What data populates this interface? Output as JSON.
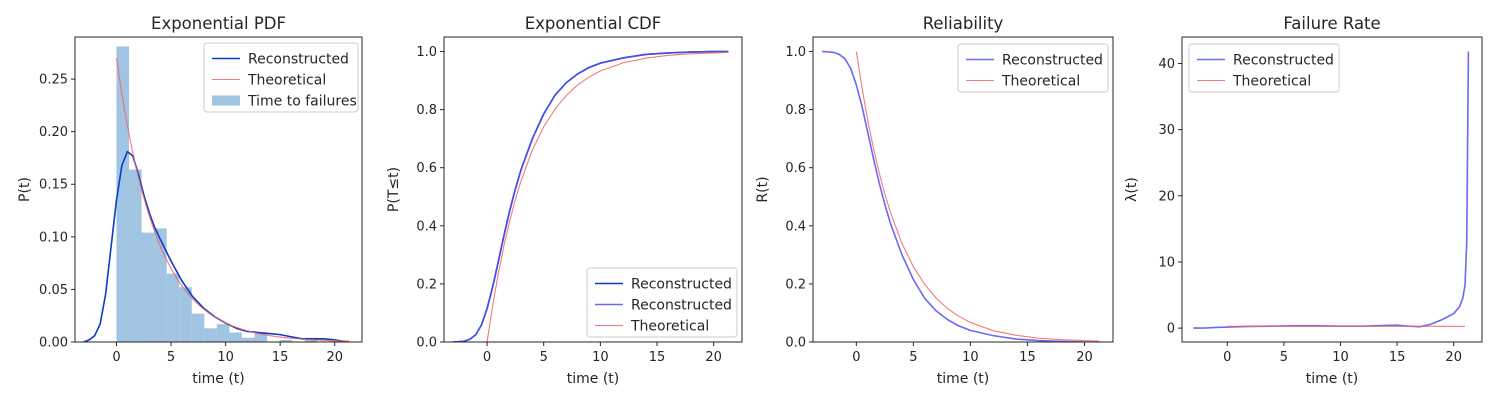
{
  "colors": {
    "reconstructed_kde": "#0a3cc8",
    "reconstructed": "#5050f0",
    "theoretical": "#f06464",
    "histogram": "#8fbadd",
    "axis": "#262626"
  },
  "chart_data": [
    {
      "type": "line",
      "title": "Exponential PDF",
      "xlabel": "time (t)",
      "ylabel": "P(t)",
      "xlim": [
        -3.8,
        22.5
      ],
      "ylim": [
        0,
        0.29
      ],
      "xticks": [
        0,
        5,
        10,
        15,
        20
      ],
      "yticks": [
        0.0,
        0.05,
        0.1,
        0.15,
        0.2,
        0.25
      ],
      "ytick_labels": [
        "0.00",
        "0.05",
        "0.10",
        "0.15",
        "0.20",
        "0.25"
      ],
      "legend_position": "top-right",
      "legend": [
        "Reconstructed",
        "Theoretical",
        "Time to failures"
      ],
      "histogram": {
        "name": "Time to failures",
        "bin_edges": [
          0,
          1.15,
          2.3,
          3.45,
          4.6,
          5.75,
          6.9,
          8.05,
          9.2,
          10.35,
          11.5,
          12.65,
          13.8,
          14.95,
          16.1,
          17.25,
          18.4,
          19.55,
          20.7
        ],
        "heights": [
          0.281,
          0.164,
          0.104,
          0.108,
          0.065,
          0.052,
          0.027,
          0.013,
          0.017,
          0.009,
          0.004,
          0.009,
          0.0,
          0.002,
          0.0,
          0.004,
          0.0,
          0.001
        ]
      },
      "series": [
        {
          "name": "Reconstructed",
          "color_key": "reconstructed_kde",
          "x": [
            -3.0,
            -2.5,
            -2.0,
            -1.5,
            -1.0,
            -0.5,
            0.0,
            0.5,
            1.0,
            1.5,
            2.0,
            2.5,
            3.0,
            3.5,
            4.0,
            5.0,
            6.0,
            7.0,
            8.0,
            9.0,
            10.0,
            11.0,
            12.0,
            13.0,
            14.0,
            15.0,
            16.0,
            17.0,
            18.0,
            19.0,
            20.0,
            21.3
          ],
          "y": [
            0.0,
            0.002,
            0.006,
            0.017,
            0.045,
            0.09,
            0.135,
            0.168,
            0.181,
            0.177,
            0.16,
            0.14,
            0.123,
            0.109,
            0.098,
            0.077,
            0.058,
            0.043,
            0.032,
            0.024,
            0.018,
            0.013,
            0.01,
            0.009,
            0.008,
            0.007,
            0.005,
            0.003,
            0.003,
            0.003,
            0.002,
            0.0
          ]
        },
        {
          "name": "Theoretical",
          "color_key": "theoretical",
          "rate": 0.27,
          "x_start": 0.0,
          "x_end": 21.3
        }
      ]
    },
    {
      "type": "line",
      "title": "Exponential CDF",
      "xlabel": "time (t)",
      "ylabel": "P(T≤t)",
      "xlim": [
        -3.8,
        22.5
      ],
      "ylim": [
        0,
        1.05
      ],
      "xticks": [
        0,
        5,
        10,
        15,
        20
      ],
      "yticks": [
        0.0,
        0.2,
        0.4,
        0.6,
        0.8,
        1.0
      ],
      "ytick_labels": [
        "0.0",
        "0.2",
        "0.4",
        "0.6",
        "0.8",
        "1.0"
      ],
      "legend_position": "bottom-right",
      "legend": [
        "Reconstructed",
        "Reconstructed",
        "Theoretical"
      ],
      "series": [
        {
          "name": "Reconstructed",
          "color_key": "reconstructed_kde",
          "x": [
            -3.0,
            -2.5,
            -2.0,
            -1.5,
            -1.0,
            -0.5,
            0.0,
            0.5,
            1.0,
            1.5,
            2.0,
            2.5,
            3.0,
            4.0,
            5.0,
            6.0,
            7.0,
            8.0,
            9.0,
            10.0,
            12.0,
            14.0,
            16.0,
            18.0,
            20.0,
            21.3
          ],
          "y": [
            0.0,
            0.001,
            0.003,
            0.01,
            0.025,
            0.058,
            0.115,
            0.19,
            0.278,
            0.368,
            0.452,
            0.527,
            0.593,
            0.7,
            0.785,
            0.85,
            0.893,
            0.923,
            0.945,
            0.96,
            0.978,
            0.99,
            0.995,
            0.998,
            1.0,
            1.0
          ]
        },
        {
          "name": "Reconstructed",
          "color_key": "reconstructed",
          "x": [
            -3.0,
            -2.5,
            -2.0,
            -1.5,
            -1.0,
            -0.5,
            0.0,
            0.5,
            1.0,
            1.5,
            2.0,
            2.5,
            3.0,
            4.0,
            5.0,
            6.0,
            7.0,
            8.0,
            9.0,
            10.0,
            12.0,
            14.0,
            16.0,
            18.0,
            20.0,
            21.3
          ],
          "y": [
            0.0,
            0.001,
            0.003,
            0.01,
            0.025,
            0.058,
            0.115,
            0.19,
            0.278,
            0.368,
            0.452,
            0.527,
            0.593,
            0.7,
            0.785,
            0.85,
            0.893,
            0.923,
            0.945,
            0.96,
            0.978,
            0.99,
            0.995,
            0.998,
            1.0,
            1.0
          ]
        },
        {
          "name": "Theoretical",
          "color_key": "theoretical",
          "x": [
            0.0,
            0.5,
            1.0,
            1.5,
            2.0,
            2.5,
            3.0,
            4.0,
            5.0,
            6.0,
            7.0,
            8.0,
            9.0,
            10.0,
            12.0,
            14.0,
            16.0,
            18.0,
            20.0,
            21.3
          ],
          "y": [
            0.0,
            0.126,
            0.237,
            0.333,
            0.417,
            0.491,
            0.555,
            0.661,
            0.741,
            0.802,
            0.849,
            0.885,
            0.912,
            0.933,
            0.961,
            0.977,
            0.987,
            0.992,
            0.995,
            0.997
          ]
        }
      ]
    },
    {
      "type": "line",
      "title": "Reliability",
      "xlabel": "time (t)",
      "ylabel": "R(t)",
      "xlim": [
        -3.8,
        22.5
      ],
      "ylim": [
        0,
        1.05
      ],
      "xticks": [
        0,
        5,
        10,
        15,
        20
      ],
      "yticks": [
        0.0,
        0.2,
        0.4,
        0.6,
        0.8,
        1.0
      ],
      "ytick_labels": [
        "0.0",
        "0.2",
        "0.4",
        "0.6",
        "0.8",
        "1.0"
      ],
      "legend_position": "top-right",
      "legend": [
        "Reconstructed",
        "Theoretical"
      ],
      "series": [
        {
          "name": "Reconstructed",
          "color_key": "reconstructed",
          "x": [
            -3.0,
            -2.5,
            -2.0,
            -1.5,
            -1.0,
            -0.5,
            0.0,
            0.5,
            1.0,
            1.5,
            2.0,
            2.5,
            3.0,
            4.0,
            5.0,
            6.0,
            7.0,
            8.0,
            9.0,
            10.0,
            12.0,
            14.0,
            16.0,
            18.0,
            20.0,
            21.3
          ],
          "y": [
            1.0,
            0.999,
            0.997,
            0.99,
            0.975,
            0.942,
            0.885,
            0.81,
            0.722,
            0.632,
            0.548,
            0.473,
            0.407,
            0.3,
            0.215,
            0.15,
            0.107,
            0.077,
            0.055,
            0.04,
            0.022,
            0.01,
            0.005,
            0.002,
            0.0,
            0.0
          ]
        },
        {
          "name": "Theoretical",
          "color_key": "theoretical",
          "x": [
            0.0,
            0.5,
            1.0,
            1.5,
            2.0,
            2.5,
            3.0,
            4.0,
            5.0,
            6.0,
            7.0,
            8.0,
            9.0,
            10.0,
            12.0,
            14.0,
            16.0,
            18.0,
            20.0,
            21.3
          ],
          "y": [
            1.0,
            0.874,
            0.763,
            0.667,
            0.583,
            0.509,
            0.445,
            0.339,
            0.259,
            0.198,
            0.151,
            0.115,
            0.088,
            0.067,
            0.039,
            0.023,
            0.013,
            0.008,
            0.005,
            0.003
          ]
        }
      ]
    },
    {
      "type": "line",
      "title": "Failure Rate",
      "xlabel": "time (t)",
      "ylabel": "λ(t)",
      "xlim": [
        -4.0,
        22.5
      ],
      "ylim": [
        -2.1,
        44.0
      ],
      "xticks": [
        0,
        5,
        10,
        15,
        20
      ],
      "yticks": [
        0,
        10,
        20,
        30,
        40
      ],
      "ytick_labels": [
        "0",
        "10",
        "20",
        "30",
        "40"
      ],
      "legend_position": "top-left",
      "legend": [
        "Reconstructed",
        "Theoretical"
      ],
      "series": [
        {
          "name": "Reconstructed",
          "color_key": "reconstructed",
          "x": [
            -3.0,
            -2.0,
            -1.0,
            0.0,
            2.0,
            4.0,
            6.0,
            8.0,
            10.0,
            12.0,
            14.0,
            15.0,
            16.0,
            17.0,
            18.0,
            19.0,
            20.0,
            20.5,
            20.8,
            21.0,
            21.15,
            21.3
          ],
          "y": [
            0.0,
            0.0,
            0.1,
            0.15,
            0.25,
            0.3,
            0.35,
            0.35,
            0.3,
            0.3,
            0.4,
            0.45,
            0.3,
            0.2,
            0.6,
            1.3,
            2.2,
            3.2,
            4.5,
            6.5,
            13.0,
            41.8
          ]
        },
        {
          "name": "Theoretical",
          "color_key": "theoretical",
          "x": [
            0.0,
            21.0
          ],
          "y": [
            0.27,
            0.27
          ]
        }
      ]
    }
  ]
}
